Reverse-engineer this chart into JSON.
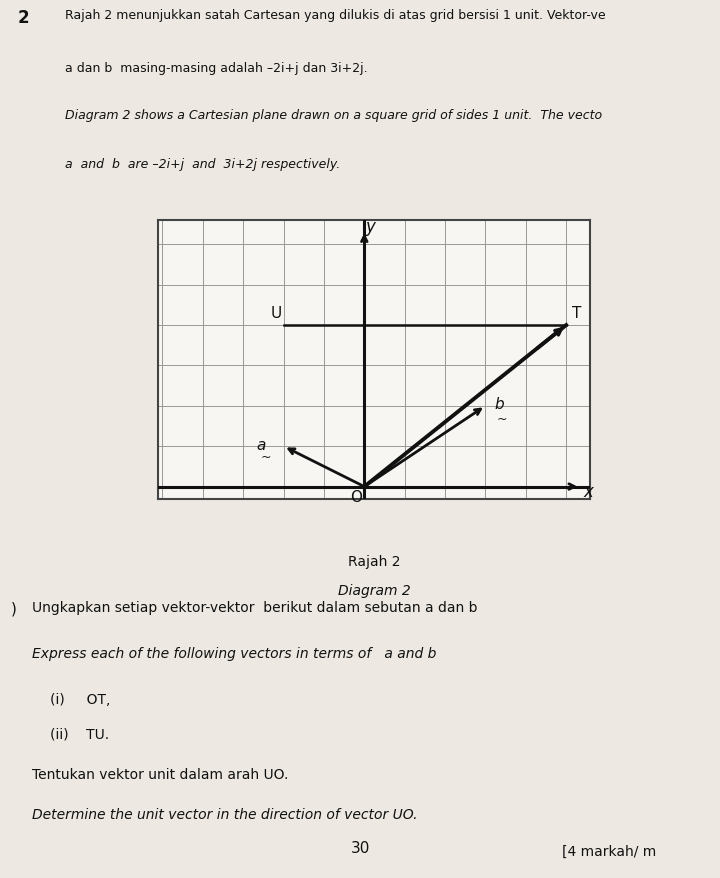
{
  "title_rajah": "Rajah 2",
  "title_diagram": "Diagram 2",
  "grid_color": "#999999",
  "axis_color": "#111111",
  "background_color": "#f8f6f2",
  "paper_color": "#ede9e2",
  "O": [
    0,
    0
  ],
  "T": [
    5,
    4
  ],
  "U": [
    -2,
    4
  ],
  "a_vec": [
    -2,
    1
  ],
  "b_vec": [
    3,
    2
  ],
  "x_min": -5,
  "x_max": 5,
  "y_min": 0,
  "y_max": 6,
  "line_OT_color": "#111111",
  "arrow_color": "#111111",
  "text_color": "#111111",
  "figsize": [
    7.2,
    8.79
  ],
  "dpi": 100,
  "header_lines": [
    "Rajah 2 menunjukkan satah Cartesan yang dilukis di atas grid bersisi 1 unit. Vektor-ve",
    "a dan b  masing-masing adalah –2i+j dan 3i+2j.",
    "Diagram 2 shows a Cartesian plane drawn on a square grid of sides 1 unit.  The vecto",
    "a  and  b  are –2i+j  and  3i+2j respectively."
  ],
  "header_italic": [
    false,
    false,
    true,
    true
  ],
  "bottom_lines": [
    "Ungkapkan setiap vektor-vektor  berikut dalam sebutan a dan b",
    "Express each of the following vectors in terms of   a and b",
    "(i)     OT,",
    "(ii)    TU.",
    "Tentukan vektor unit dalam arah UO.",
    "Determine the unit vector in the direction of vector UO."
  ],
  "bottom_italic": [
    false,
    true,
    false,
    false,
    false,
    true
  ],
  "markah": "[4 markah/ m",
  "page_number": "30"
}
